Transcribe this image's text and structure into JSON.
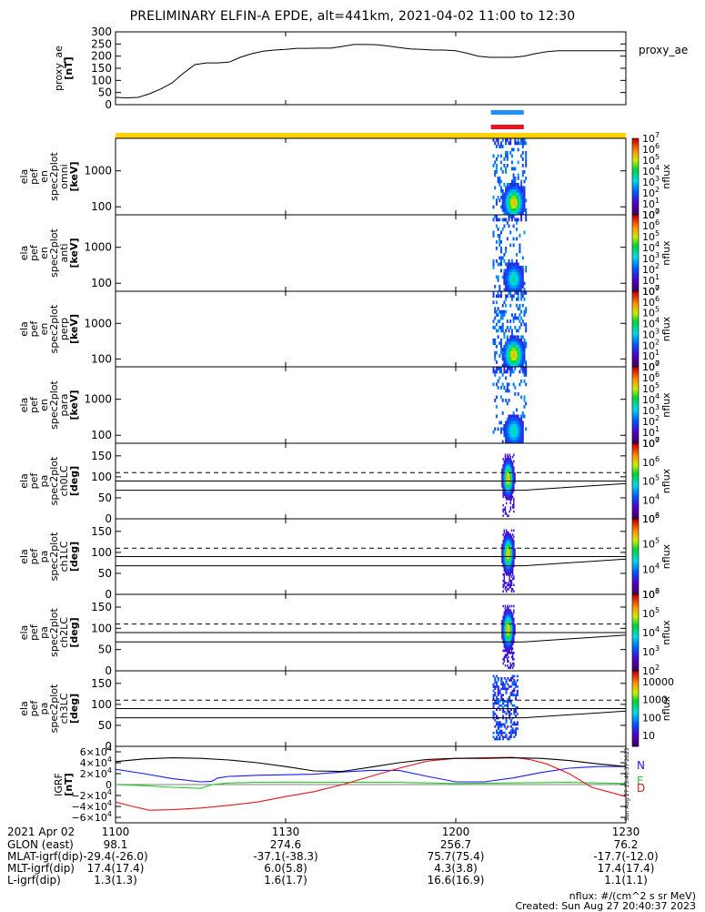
{
  "title": "PRELIMINARY ELFIN-A EPDE, alt=441km, 2021-04-02 11:00 to 12:30",
  "footer": {
    "units": "nflux: #/(cm^2 s sr MeV)",
    "created": "Created: Sun Aug 27 20:40:37 2023",
    "side_stamp": "Sun Aug 27 13:40:37 2023"
  },
  "colors": {
    "axis": "#000000",
    "bar_yellow": "#ffd200",
    "bar_blue": "#1e90ff",
    "bar_red": "#e8141e",
    "comp_n": "#1a1aff",
    "comp_e": "#22cc22",
    "comp_d": "#e8141e"
  },
  "chart_data": [
    {
      "type": "line",
      "panel": "proxy_ae",
      "ylabel_lines": [
        "proxy_ae",
        "[nT]"
      ],
      "legend_label": "proxy_ae",
      "ylim": [
        0,
        300
      ],
      "yticks": [
        0,
        50,
        100,
        150,
        200,
        250,
        300
      ],
      "x": [
        1100,
        1102,
        1104,
        1106,
        1108,
        1110,
        1112,
        1114,
        1116,
        1118,
        1120,
        1122,
        1124,
        1126,
        1128,
        1130,
        1132,
        1134,
        1136,
        1138,
        1140,
        1142,
        1144,
        1146,
        1148,
        1150,
        1152,
        1154,
        1156,
        1158,
        1200,
        1202,
        1204,
        1206,
        1208,
        1210,
        1212,
        1214,
        1216,
        1218,
        1220,
        1222,
        1224,
        1226,
        1228,
        1230
      ],
      "y": [
        30,
        28,
        30,
        45,
        65,
        90,
        130,
        165,
        172,
        172,
        175,
        195,
        210,
        220,
        225,
        228,
        232,
        232,
        233,
        233,
        240,
        248,
        248,
        247,
        242,
        235,
        230,
        228,
        225,
        225,
        222,
        212,
        200,
        195,
        195,
        195,
        200,
        210,
        218,
        222,
        222,
        222,
        222,
        222,
        222,
        222
      ]
    },
    {
      "type": "bar",
      "panel": "interval_bars",
      "intervals": [
        {
          "color": "blue",
          "x_start": 1206.2,
          "x_end": 1212.0
        },
        {
          "color": "red",
          "x_start": 1206.2,
          "x_end": 1212.0
        },
        {
          "color": "yellow",
          "x_start": 1100,
          "x_end": 1230
        }
      ]
    },
    {
      "type": "heatmap",
      "panel": "en_omni",
      "ylabel_lines": [
        "ela",
        "pef",
        "en",
        "spec2plot",
        "omni",
        "[keV]"
      ],
      "yscale": "log",
      "ylim": [
        60,
        8000
      ],
      "yticks": [
        100,
        1000
      ],
      "x_range": [
        1206.5,
        1212.5
      ],
      "colorbar": {
        "label": "nflux",
        "scale": "log",
        "ticks": [
          "10",
          "10",
          "10",
          "10",
          "10",
          "10",
          "10",
          "10"
        ],
        "exps": [
          "0",
          "1",
          "2",
          "3",
          "4",
          "5",
          "6",
          "7"
        ]
      }
    },
    {
      "type": "heatmap",
      "panel": "en_anti",
      "ylabel_lines": [
        "ela",
        "pef",
        "en",
        "spec2plot",
        "anti",
        "[keV]"
      ],
      "yscale": "log",
      "ylim": [
        60,
        8000
      ],
      "yticks": [
        100,
        1000
      ],
      "x_range": [
        1206.5,
        1212.5
      ],
      "colorbar": {
        "label": "nflux",
        "scale": "log",
        "ticks": [
          "10",
          "10",
          "10",
          "10",
          "10",
          "10",
          "10",
          "10"
        ],
        "exps": [
          "0",
          "1",
          "2",
          "3",
          "4",
          "5",
          "6",
          "7"
        ]
      }
    },
    {
      "type": "heatmap",
      "panel": "en_perp",
      "ylabel_lines": [
        "ela",
        "pef",
        "en",
        "spec2plot",
        "perp",
        "[keV]"
      ],
      "yscale": "log",
      "ylim": [
        60,
        8000
      ],
      "yticks": [
        100,
        1000
      ],
      "x_range": [
        1206.5,
        1212.5
      ],
      "colorbar": {
        "label": "nflux",
        "scale": "log",
        "ticks": [
          "10",
          "10",
          "10",
          "10",
          "10",
          "10",
          "10",
          "10"
        ],
        "exps": [
          "0",
          "1",
          "2",
          "3",
          "4",
          "5",
          "6",
          "7"
        ]
      }
    },
    {
      "type": "heatmap",
      "panel": "en_para",
      "ylabel_lines": [
        "ela",
        "pef",
        "en",
        "spec2plot",
        "para",
        "[keV]"
      ],
      "yscale": "log",
      "ylim": [
        60,
        8000
      ],
      "yticks": [
        100,
        1000
      ],
      "x_range": [
        1206.5,
        1212.5
      ],
      "colorbar": {
        "label": "nflux",
        "scale": "log",
        "ticks": [
          "10",
          "10",
          "10",
          "10",
          "10",
          "10",
          "10",
          "10"
        ],
        "exps": [
          "0",
          "1",
          "2",
          "3",
          "4",
          "5",
          "6",
          "7"
        ]
      }
    },
    {
      "type": "heatmap",
      "panel": "pa_ch0LC",
      "ylabel_lines": [
        "ela",
        "pef",
        "pa",
        "spec2plot",
        "ch0LC",
        "[deg]"
      ],
      "ylim": [
        0,
        180
      ],
      "yticks": [
        0,
        50,
        100,
        150
      ],
      "x_range": [
        1207.5,
        1210.5
      ],
      "colorbar": {
        "label": "nflux",
        "scale": "log",
        "ticks": [
          "10",
          "10",
          "10",
          "10",
          "10"
        ],
        "exps": [
          "3",
          "4",
          "5",
          "6",
          "7"
        ]
      }
    },
    {
      "type": "heatmap",
      "panel": "pa_ch1LC",
      "ylabel_lines": [
        "ela",
        "pef",
        "pa",
        "spec2plot",
        "ch1LC",
        "[deg]"
      ],
      "ylim": [
        0,
        180
      ],
      "yticks": [
        0,
        50,
        100,
        150
      ],
      "x_range": [
        1207.5,
        1210.5
      ],
      "colorbar": {
        "label": "nflux",
        "scale": "log",
        "ticks": [
          "10",
          "10",
          "10",
          "10"
        ],
        "exps": [
          "3",
          "4",
          "5",
          "6"
        ]
      }
    },
    {
      "type": "heatmap",
      "panel": "pa_ch2LC",
      "ylabel_lines": [
        "ela",
        "pef",
        "pa",
        "spec2plot",
        "ch2LC",
        "[deg]"
      ],
      "ylim": [
        0,
        180
      ],
      "yticks": [
        0,
        50,
        100,
        150
      ],
      "x_range": [
        1207.5,
        1210.5
      ],
      "colorbar": {
        "label": "nflux",
        "scale": "log",
        "ticks": [
          "10",
          "10",
          "10",
          "10",
          "10"
        ],
        "exps": [
          "2",
          "3",
          "4",
          "5",
          "6"
        ]
      }
    },
    {
      "type": "heatmap",
      "panel": "pa_ch3LC",
      "ylabel_lines": [
        "ela",
        "pef",
        "pa",
        "spec2plot",
        "ch3LC",
        "[deg]"
      ],
      "ylim": [
        0,
        180
      ],
      "yticks": [
        0,
        50,
        100,
        150
      ],
      "x_range": [
        1206.5,
        1211.0
      ],
      "colorbar": {
        "label": "nflux",
        "scale": "log",
        "tick_labels": [
          "10",
          "100",
          "1000",
          "10000"
        ]
      }
    },
    {
      "type": "line",
      "panel": "igrf",
      "ylabel_lines": [
        "IGRF",
        "[nT]"
      ],
      "ylim": [
        -70000,
        70000
      ],
      "yticks": [
        -60000,
        -40000,
        -20000,
        0,
        20000,
        40000,
        60000
      ],
      "ytick_mantissa": [
        "−6×10",
        "−4×10",
        "−2×10",
        "0",
        "2×10",
        "4×10",
        "6×10"
      ],
      "ytick_exp": [
        "4",
        "4",
        "4",
        "",
        "4",
        "4",
        "4"
      ],
      "series": [
        {
          "label": "N",
          "color": "blue",
          "x": [
            1100,
            1105,
            1110,
            1115,
            1117,
            1118,
            1120,
            1125,
            1130,
            1135,
            1140,
            1145,
            1150,
            1155,
            1200,
            1205,
            1210,
            1215,
            1220,
            1225,
            1230
          ],
          "y": [
            28000,
            20000,
            11000,
            5000,
            6000,
            12000,
            15000,
            17000,
            18000,
            19000,
            23000,
            26000,
            26000,
            15000,
            5000,
            5000,
            12000,
            22000,
            30000,
            33000,
            33000
          ]
        },
        {
          "label": "E",
          "color": "green",
          "x": [
            1100,
            1105,
            1110,
            1115,
            1117,
            1120,
            1125,
            1130,
            1140,
            1150,
            1200,
            1210,
            1220,
            1230
          ],
          "y": [
            0,
            -2000,
            -5000,
            -7000,
            0,
            3000,
            4000,
            4000,
            4000,
            4000,
            2000,
            3000,
            4000,
            2000
          ]
        },
        {
          "label": "D",
          "color": "red",
          "x": [
            1100,
            1103,
            1106,
            1110,
            1115,
            1120,
            1125,
            1130,
            1135,
            1140,
            1145,
            1150,
            1155,
            1200,
            1205,
            1210,
            1213,
            1216,
            1220,
            1224,
            1230
          ],
          "y": [
            -32000,
            -40000,
            -47000,
            -46000,
            -43000,
            -38000,
            -32000,
            -22000,
            -13000,
            0,
            15000,
            30000,
            43000,
            48000,
            49000,
            50000,
            46000,
            38000,
            20000,
            -5000,
            -22000
          ]
        },
        {
          "label": "",
          "color": "black",
          "x": [
            1100,
            1105,
            1110,
            1115,
            1120,
            1125,
            1130,
            1135,
            1140,
            1145,
            1150,
            1155,
            1200,
            1205,
            1210,
            1215,
            1220,
            1225,
            1230
          ],
          "y": [
            42000,
            47000,
            49000,
            48000,
            45000,
            40000,
            33000,
            25000,
            24000,
            32000,
            40000,
            46000,
            48000,
            48000,
            49000,
            48000,
            44000,
            38000,
            33000
          ]
        }
      ]
    }
  ],
  "ephemeris": {
    "date_label": "2021 Apr 02",
    "x_ticks": [
      "1100",
      "1130",
      "1200",
      "1230"
    ],
    "rows": [
      {
        "label": "GLON (east)",
        "values": [
          "98.1",
          "274.6",
          "256.7",
          "76.2"
        ]
      },
      {
        "label": "MLAT-igrf(dip)",
        "values": [
          "-29.4(-26.0)",
          "-37.1(-38.3)",
          "75.7(75.4)",
          "-17.7(-12.0)"
        ]
      },
      {
        "label": "MLT-igrf(dip)",
        "values": [
          "17.4(17.4)",
          "6.0(5.8)",
          "4.3(3.8)",
          "17.4(17.4)"
        ]
      },
      {
        "label": "L-igrf(dip)",
        "values": [
          "1.3(1.3)",
          "1.6(1.7)",
          "16.6(16.9)",
          "1.1(1.1)"
        ]
      }
    ]
  }
}
